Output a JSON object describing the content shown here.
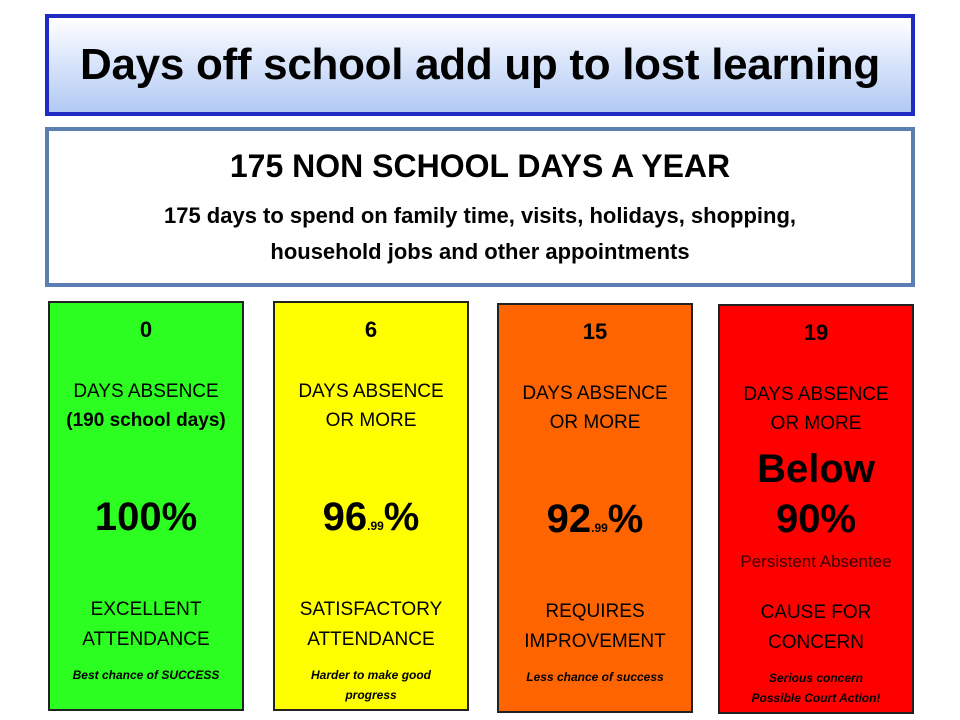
{
  "title": "Days off school add up to lost learning",
  "info": {
    "heading": "175 NON SCHOOL DAYS A YEAR",
    "line1": "175 days to spend on family time, visits, holidays, shopping,",
    "line2": "household jobs and other appointments"
  },
  "cards": [
    {
      "number": "0",
      "absence_line1": "DAYS ABSENCE",
      "absence_line2": "(190 school days)",
      "percent_main": "100%",
      "rating_line1": "EXCELLENT",
      "rating_line2": "ATTENDANCE",
      "note_line1": "Best chance of SUCCESS",
      "color": "#2dfe22"
    },
    {
      "number": "6",
      "absence_line1": "DAYS ABSENCE",
      "absence_line2": "OR MORE",
      "percent_main": "96",
      "percent_decimal": ".99",
      "percent_sign": "%",
      "rating_line1": "SATISFACTORY",
      "rating_line2": "ATTENDANCE",
      "note_line1": "Harder to make good",
      "note_line2": "progress",
      "color": "#ffff00"
    },
    {
      "number": "15",
      "absence_line1": "DAYS ABSENCE",
      "absence_line2": "OR MORE",
      "percent_main": "92",
      "percent_decimal": ".99",
      "percent_sign": "%",
      "rating_line1": "REQUIRES",
      "rating_line2": "IMPROVEMENT",
      "note_line1": "Less chance of success",
      "color": "#fe6400"
    },
    {
      "number": "19",
      "absence_line1": "DAYS ABSENCE",
      "absence_line2": "OR MORE",
      "percent_line1": "Below",
      "percent_line2": "90%",
      "persistent": "Persistent Absentee",
      "rating_line1": "CAUSE FOR",
      "rating_line2": "CONCERN",
      "note_line1": "Serious concern",
      "note_line2": "Possible Court Action!",
      "color": "#ff0000"
    }
  ]
}
